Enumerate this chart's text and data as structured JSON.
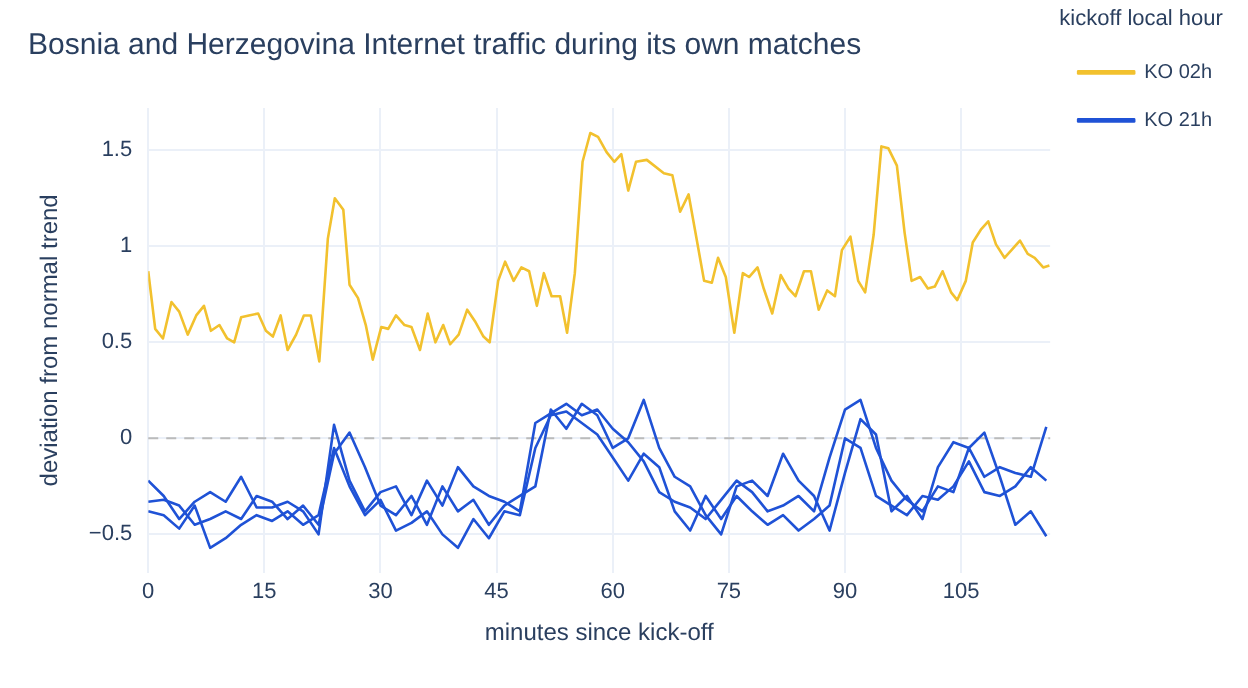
{
  "chart_data": {
    "type": "line",
    "title": "Bosnia and Herzegovina Internet traffic during its own matches",
    "xlabel": "minutes since kick-off",
    "ylabel": "deviation from normal trend",
    "legend_title": "kickoff local hour",
    "legend": "top right",
    "grid": true,
    "marker": "none",
    "line_style": "solid",
    "xlim": [
      0,
      116.5
    ],
    "xticks": [
      0,
      15,
      30,
      45,
      60,
      75,
      90,
      105
    ],
    "ylim": [
      -0.7,
      1.72
    ],
    "yticks": [
      {
        "value": -0.5,
        "label": "−0.5"
      },
      0,
      0.5,
      1,
      1.5
    ],
    "ref_lines": [
      {
        "axis": "y",
        "value": 0,
        "label": null,
        "color": "#bbbbbb",
        "line_style": "dashed"
      }
    ],
    "series": [
      {
        "name": "KO 02h",
        "color": "#f2c12e",
        "x": [
          0,
          0.9,
          1.9,
          3,
          4,
          5.1,
          6.2,
          7.2,
          8.1,
          9.2,
          10.2,
          11.1,
          12,
          13,
          14.2,
          15.2,
          16.1,
          17.1,
          18,
          19.1,
          20.1,
          21,
          22.1,
          23.2,
          24.1,
          25.2,
          26,
          27.1,
          28.1,
          29,
          30.1,
          31,
          32,
          33.1,
          34,
          35.1,
          36.1,
          37.1,
          38.1,
          39,
          40.1,
          41.2,
          42.2,
          43.3,
          44.1,
          45.2,
          46.1,
          47.2,
          48.2,
          49.2,
          50.2,
          51.1,
          52.1,
          53.2,
          54.1,
          55.1,
          56.1,
          57.1,
          58.1,
          59.2,
          60.2,
          61.1,
          62,
          63,
          64.4,
          66.6,
          67.7,
          68.7,
          69.8,
          70.6,
          71.8,
          72.8,
          73.6,
          74.6,
          75.7,
          76.8,
          77.6,
          78.7,
          79.5,
          80.6,
          81.7,
          82.7,
          83.6,
          84.7,
          85.6,
          86.6,
          87.7,
          88.7,
          89.6,
          90.7,
          91.7,
          92.6,
          93.7,
          94.7,
          95.6,
          96.7,
          97.7,
          98.6,
          99.7,
          100.7,
          101.6,
          102.6,
          103.7,
          104.5,
          105.6,
          106.5,
          107.6,
          108.5,
          109.5,
          110.6,
          111.5,
          112.6,
          113.6,
          114.5,
          115.6,
          116.4
        ],
        "values": [
          0.87,
          0.57,
          0.52,
          0.71,
          0.66,
          0.54,
          0.64,
          0.69,
          0.56,
          0.59,
          0.52,
          0.5,
          0.63,
          0.64,
          0.65,
          0.56,
          0.53,
          0.64,
          0.46,
          0.54,
          0.64,
          0.64,
          0.4,
          1.04,
          1.25,
          1.19,
          0.8,
          0.73,
          0.59,
          0.41,
          0.58,
          0.57,
          0.64,
          0.59,
          0.58,
          0.46,
          0.65,
          0.5,
          0.59,
          0.49,
          0.54,
          0.67,
          0.61,
          0.53,
          0.5,
          0.82,
          0.92,
          0.82,
          0.89,
          0.87,
          0.69,
          0.86,
          0.74,
          0.74,
          0.55,
          0.86,
          1.44,
          1.59,
          1.57,
          1.49,
          1.44,
          1.48,
          1.29,
          1.44,
          1.45,
          1.38,
          1.37,
          1.18,
          1.27,
          1.09,
          0.82,
          0.81,
          0.94,
          0.84,
          0.55,
          0.86,
          0.84,
          0.89,
          0.78,
          0.65,
          0.85,
          0.78,
          0.74,
          0.87,
          0.87,
          0.67,
          0.77,
          0.74,
          0.98,
          1.05,
          0.82,
          0.76,
          1.06,
          1.52,
          1.51,
          1.42,
          1.07,
          0.82,
          0.84,
          0.78,
          0.79,
          0.87,
          0.76,
          0.72,
          0.82,
          1.02,
          1.09,
          1.13,
          1.01,
          0.94,
          0.98,
          1.03,
          0.96,
          0.94,
          0.89,
          0.9
        ]
      },
      {
        "name": "KO 21h",
        "color": "#1f52d6",
        "x": [
          0,
          2,
          4,
          6,
          8,
          10,
          12,
          14,
          16,
          18,
          20,
          22,
          24,
          26,
          28,
          30,
          32,
          34,
          36,
          38,
          40,
          42,
          44,
          46,
          48,
          50,
          52,
          54,
          56,
          58,
          60,
          62,
          64,
          66,
          68,
          70,
          72,
          74,
          76,
          78,
          80,
          82,
          84,
          86,
          88,
          90,
          92,
          94,
          96,
          98,
          100,
          102,
          104,
          106,
          108,
          110,
          112,
          114,
          116
        ],
        "values": [
          -0.22,
          -0.3,
          -0.42,
          -0.33,
          -0.28,
          -0.33,
          -0.2,
          -0.36,
          -0.36,
          -0.33,
          -0.38,
          -0.5,
          0.07,
          -0.22,
          -0.38,
          -0.28,
          -0.25,
          -0.4,
          -0.22,
          -0.35,
          -0.15,
          -0.25,
          -0.3,
          -0.33,
          -0.38,
          0.08,
          0.13,
          0.18,
          0.12,
          0.15,
          0.05,
          -0.02,
          -0.12,
          -0.28,
          -0.33,
          -0.36,
          -0.42,
          -0.32,
          -0.22,
          -0.28,
          -0.38,
          -0.35,
          -0.3,
          -0.38,
          -0.1,
          0.15,
          0.2,
          -0.05,
          -0.22,
          -0.32,
          -0.38,
          -0.25,
          -0.28,
          -0.05,
          -0.2,
          -0.15,
          -0.18,
          -0.2,
          0.06
        ]
      },
      {
        "color": "#1f52d6",
        "x": [
          0,
          2,
          4,
          6,
          8,
          10,
          12,
          14,
          16,
          18,
          20,
          22,
          24,
          26,
          28,
          30,
          32,
          34,
          36,
          38,
          40,
          42,
          44,
          46,
          48,
          50,
          52,
          54,
          56,
          58,
          60,
          62,
          64,
          66,
          68,
          70,
          72,
          74,
          76,
          78,
          80,
          82,
          84,
          86,
          88,
          90,
          92,
          94,
          96,
          98,
          100,
          102,
          104,
          106,
          108,
          110,
          112,
          114,
          116
        ],
        "values": [
          -0.33,
          -0.32,
          -0.35,
          -0.45,
          -0.42,
          -0.38,
          -0.42,
          -0.3,
          -0.33,
          -0.42,
          -0.35,
          -0.45,
          -0.08,
          0.03,
          -0.15,
          -0.35,
          -0.4,
          -0.3,
          -0.45,
          -0.25,
          -0.38,
          -0.32,
          -0.45,
          -0.35,
          -0.3,
          -0.25,
          0.15,
          0.05,
          0.18,
          0.12,
          -0.05,
          0,
          0.2,
          -0.05,
          -0.2,
          -0.25,
          -0.4,
          -0.5,
          -0.25,
          -0.22,
          -0.3,
          -0.08,
          -0.22,
          -0.3,
          -0.48,
          -0.18,
          0.1,
          0.02,
          -0.38,
          -0.3,
          -0.42,
          -0.15,
          -0.02,
          -0.05,
          0.03,
          -0.2,
          -0.45,
          -0.38,
          -0.51
        ]
      },
      {
        "color": "#1f52d6",
        "x": [
          0,
          2,
          4,
          6,
          8,
          10,
          12,
          14,
          16,
          18,
          20,
          22,
          24,
          26,
          28,
          30,
          32,
          34,
          36,
          38,
          40,
          42,
          44,
          46,
          48,
          50,
          52,
          54,
          56,
          58,
          60,
          62,
          64,
          66,
          68,
          70,
          72,
          74,
          76,
          78,
          80,
          82,
          84,
          86,
          88,
          90,
          92,
          94,
          96,
          98,
          100,
          102,
          104,
          106,
          108,
          110,
          112,
          114,
          116
        ],
        "values": [
          -0.38,
          -0.4,
          -0.47,
          -0.35,
          -0.57,
          -0.52,
          -0.45,
          -0.4,
          -0.43,
          -0.38,
          -0.45,
          -0.4,
          -0.05,
          -0.25,
          -0.4,
          -0.32,
          -0.48,
          -0.44,
          -0.38,
          -0.5,
          -0.57,
          -0.42,
          -0.52,
          -0.38,
          -0.4,
          -0.05,
          0.12,
          0.14,
          0.08,
          0.02,
          -0.1,
          -0.22,
          -0.08,
          -0.15,
          -0.38,
          -0.48,
          -0.3,
          -0.42,
          -0.3,
          -0.38,
          -0.45,
          -0.4,
          -0.48,
          -0.42,
          -0.35,
          0,
          -0.05,
          -0.3,
          -0.35,
          -0.4,
          -0.3,
          -0.32,
          -0.25,
          -0.12,
          -0.28,
          -0.3,
          -0.25,
          -0.15,
          -0.22
        ]
      }
    ]
  }
}
